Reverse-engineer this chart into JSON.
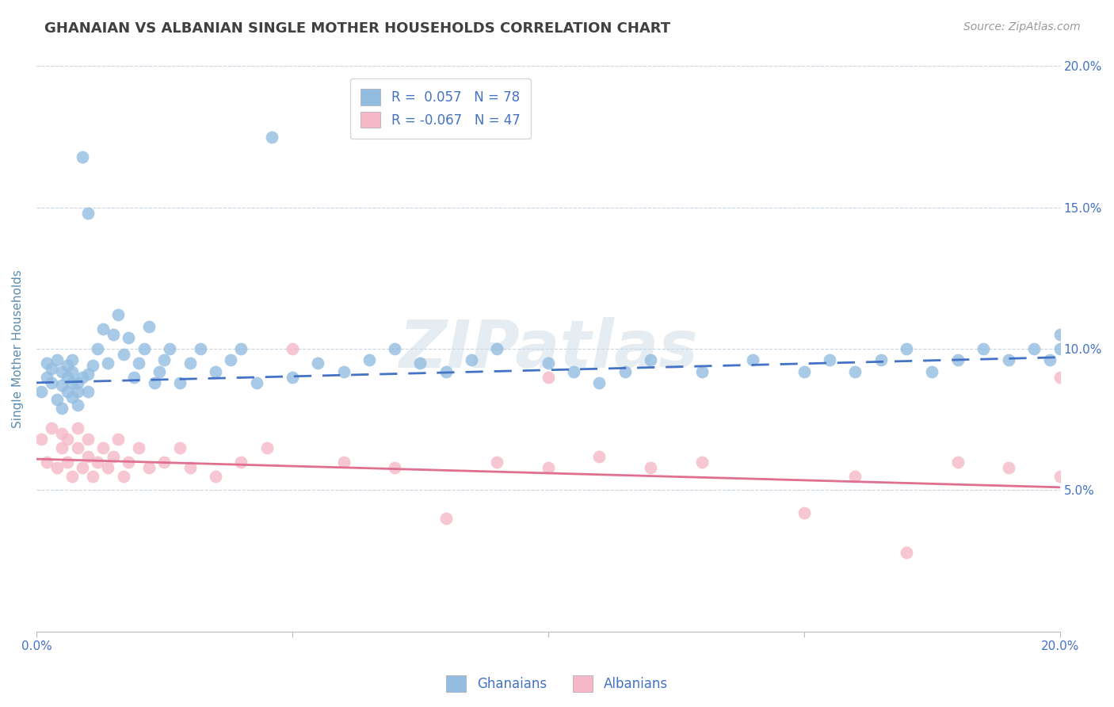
{
  "title": "GHANAIAN VS ALBANIAN SINGLE MOTHER HOUSEHOLDS CORRELATION CHART",
  "source": "Source: ZipAtlas.com",
  "ylabel": "Single Mother Households",
  "xlim": [
    0.0,
    0.2
  ],
  "ylim": [
    0.0,
    0.2
  ],
  "xticks": [
    0.0,
    0.05,
    0.1,
    0.15,
    0.2
  ],
  "yticks_right": [
    0.05,
    0.1,
    0.15,
    0.2
  ],
  "yticklabels_right": [
    "5.0%",
    "10.0%",
    "15.0%",
    "20.0%"
  ],
  "ghanaian_color": "#92BDE0",
  "albanian_color": "#F5B8C8",
  "ghanaian_line_color": "#4472C4",
  "albanian_line_color": "#E07090",
  "title_color": "#404040",
  "axis_label_color": "#5B8DB0",
  "tick_color": "#4472C4",
  "grid_color": "#C8D4E0",
  "legend_text_color": "#4472C4",
  "watermark": "ZIPatlas",
  "R_ghanaian": 0.057,
  "N_ghanaian": 78,
  "R_albanian": -0.067,
  "N_albanian": 47,
  "ghanaian_x": [
    0.001,
    0.002,
    0.002,
    0.003,
    0.003,
    0.004,
    0.004,
    0.005,
    0.005,
    0.005,
    0.006,
    0.006,
    0.006,
    0.007,
    0.007,
    0.007,
    0.007,
    0.008,
    0.008,
    0.008,
    0.009,
    0.009,
    0.01,
    0.01,
    0.01,
    0.011,
    0.012,
    0.013,
    0.014,
    0.015,
    0.016,
    0.017,
    0.018,
    0.019,
    0.02,
    0.021,
    0.022,
    0.023,
    0.024,
    0.025,
    0.026,
    0.028,
    0.03,
    0.032,
    0.035,
    0.038,
    0.04,
    0.043,
    0.046,
    0.05,
    0.055,
    0.06,
    0.065,
    0.07,
    0.075,
    0.08,
    0.085,
    0.09,
    0.1,
    0.105,
    0.11,
    0.115,
    0.12,
    0.13,
    0.14,
    0.15,
    0.155,
    0.16,
    0.165,
    0.17,
    0.175,
    0.18,
    0.185,
    0.19,
    0.195,
    0.198,
    0.2,
    0.2
  ],
  "ghanaian_y": [
    0.085,
    0.09,
    0.095,
    0.088,
    0.093,
    0.082,
    0.096,
    0.079,
    0.087,
    0.092,
    0.085,
    0.09,
    0.094,
    0.083,
    0.088,
    0.092,
    0.096,
    0.08,
    0.085,
    0.088,
    0.168,
    0.09,
    0.148,
    0.085,
    0.091,
    0.094,
    0.1,
    0.107,
    0.095,
    0.105,
    0.112,
    0.098,
    0.104,
    0.09,
    0.095,
    0.1,
    0.108,
    0.088,
    0.092,
    0.096,
    0.1,
    0.088,
    0.095,
    0.1,
    0.092,
    0.096,
    0.1,
    0.088,
    0.175,
    0.09,
    0.095,
    0.092,
    0.096,
    0.1,
    0.095,
    0.092,
    0.096,
    0.1,
    0.095,
    0.092,
    0.088,
    0.092,
    0.096,
    0.092,
    0.096,
    0.092,
    0.096,
    0.092,
    0.096,
    0.1,
    0.092,
    0.096,
    0.1,
    0.096,
    0.1,
    0.096,
    0.1,
    0.105
  ],
  "albanian_x": [
    0.001,
    0.002,
    0.003,
    0.004,
    0.005,
    0.005,
    0.006,
    0.006,
    0.007,
    0.008,
    0.008,
    0.009,
    0.01,
    0.01,
    0.011,
    0.012,
    0.013,
    0.014,
    0.015,
    0.016,
    0.017,
    0.018,
    0.02,
    0.022,
    0.025,
    0.028,
    0.03,
    0.035,
    0.04,
    0.045,
    0.05,
    0.06,
    0.07,
    0.08,
    0.09,
    0.1,
    0.11,
    0.12,
    0.13,
    0.1,
    0.15,
    0.16,
    0.17,
    0.18,
    0.19,
    0.2,
    0.2
  ],
  "albanian_y": [
    0.068,
    0.06,
    0.072,
    0.058,
    0.065,
    0.07,
    0.06,
    0.068,
    0.055,
    0.065,
    0.072,
    0.058,
    0.062,
    0.068,
    0.055,
    0.06,
    0.065,
    0.058,
    0.062,
    0.068,
    0.055,
    0.06,
    0.065,
    0.058,
    0.06,
    0.065,
    0.058,
    0.055,
    0.06,
    0.065,
    0.1,
    0.06,
    0.058,
    0.04,
    0.06,
    0.058,
    0.062,
    0.058,
    0.06,
    0.09,
    0.042,
    0.055,
    0.028,
    0.06,
    0.058,
    0.09,
    0.055
  ],
  "ghanaian_trend": [
    0.088,
    0.097
  ],
  "albanian_trend": [
    0.061,
    0.051
  ]
}
